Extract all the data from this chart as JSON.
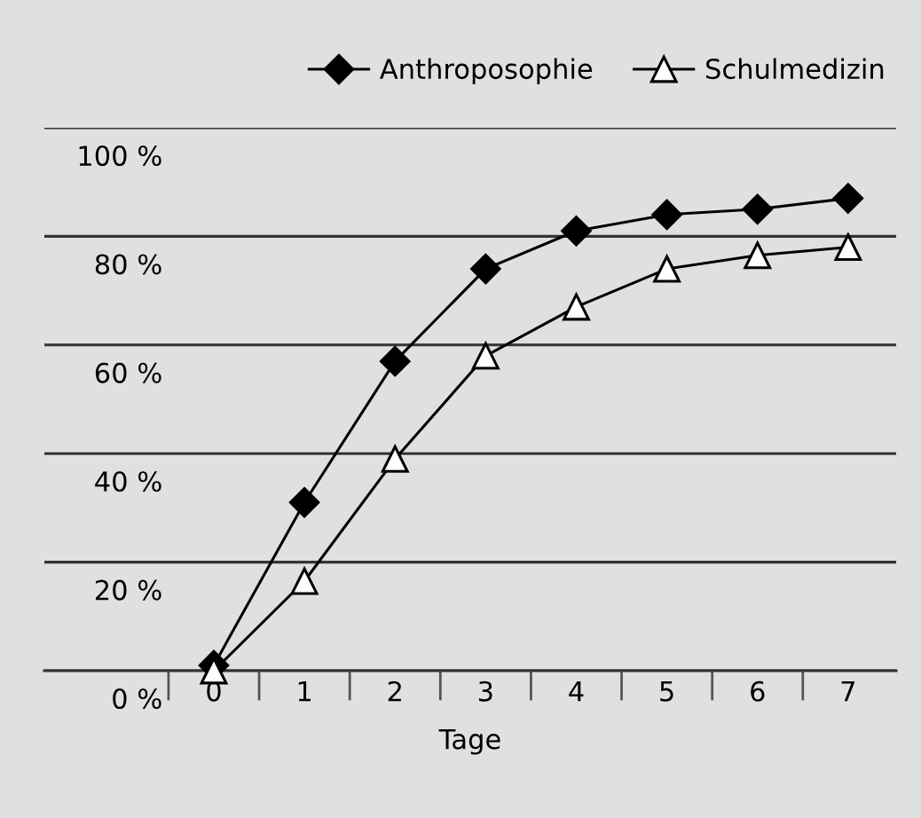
{
  "chart_data": {
    "type": "line",
    "xlabel": "Tage",
    "categories": [
      "0",
      "1",
      "2",
      "3",
      "4",
      "5",
      "6",
      "7"
    ],
    "series": [
      {
        "name": "Anthroposophie",
        "color": "#000000",
        "marker": "diamond",
        "values": [
          1,
          31,
          57,
          74,
          81,
          84,
          85,
          87
        ]
      },
      {
        "name": "Schulmedizin",
        "color": "#000000",
        "marker": "triangle",
        "values": [
          0,
          16.5,
          39,
          58,
          67,
          74,
          76.5,
          78
        ]
      }
    ],
    "ylim": [
      0,
      100
    ],
    "yticks": [
      {
        "value": 0,
        "label": "0 %"
      },
      {
        "value": 20,
        "label": "20 %"
      },
      {
        "value": 40,
        "label": "40 %"
      },
      {
        "value": 60,
        "label": "60 %"
      },
      {
        "value": 80,
        "label": "80 %"
      },
      {
        "value": 100,
        "label": "100 %"
      }
    ],
    "grid": "y",
    "legend": "top right",
    "line_style": "solid"
  }
}
